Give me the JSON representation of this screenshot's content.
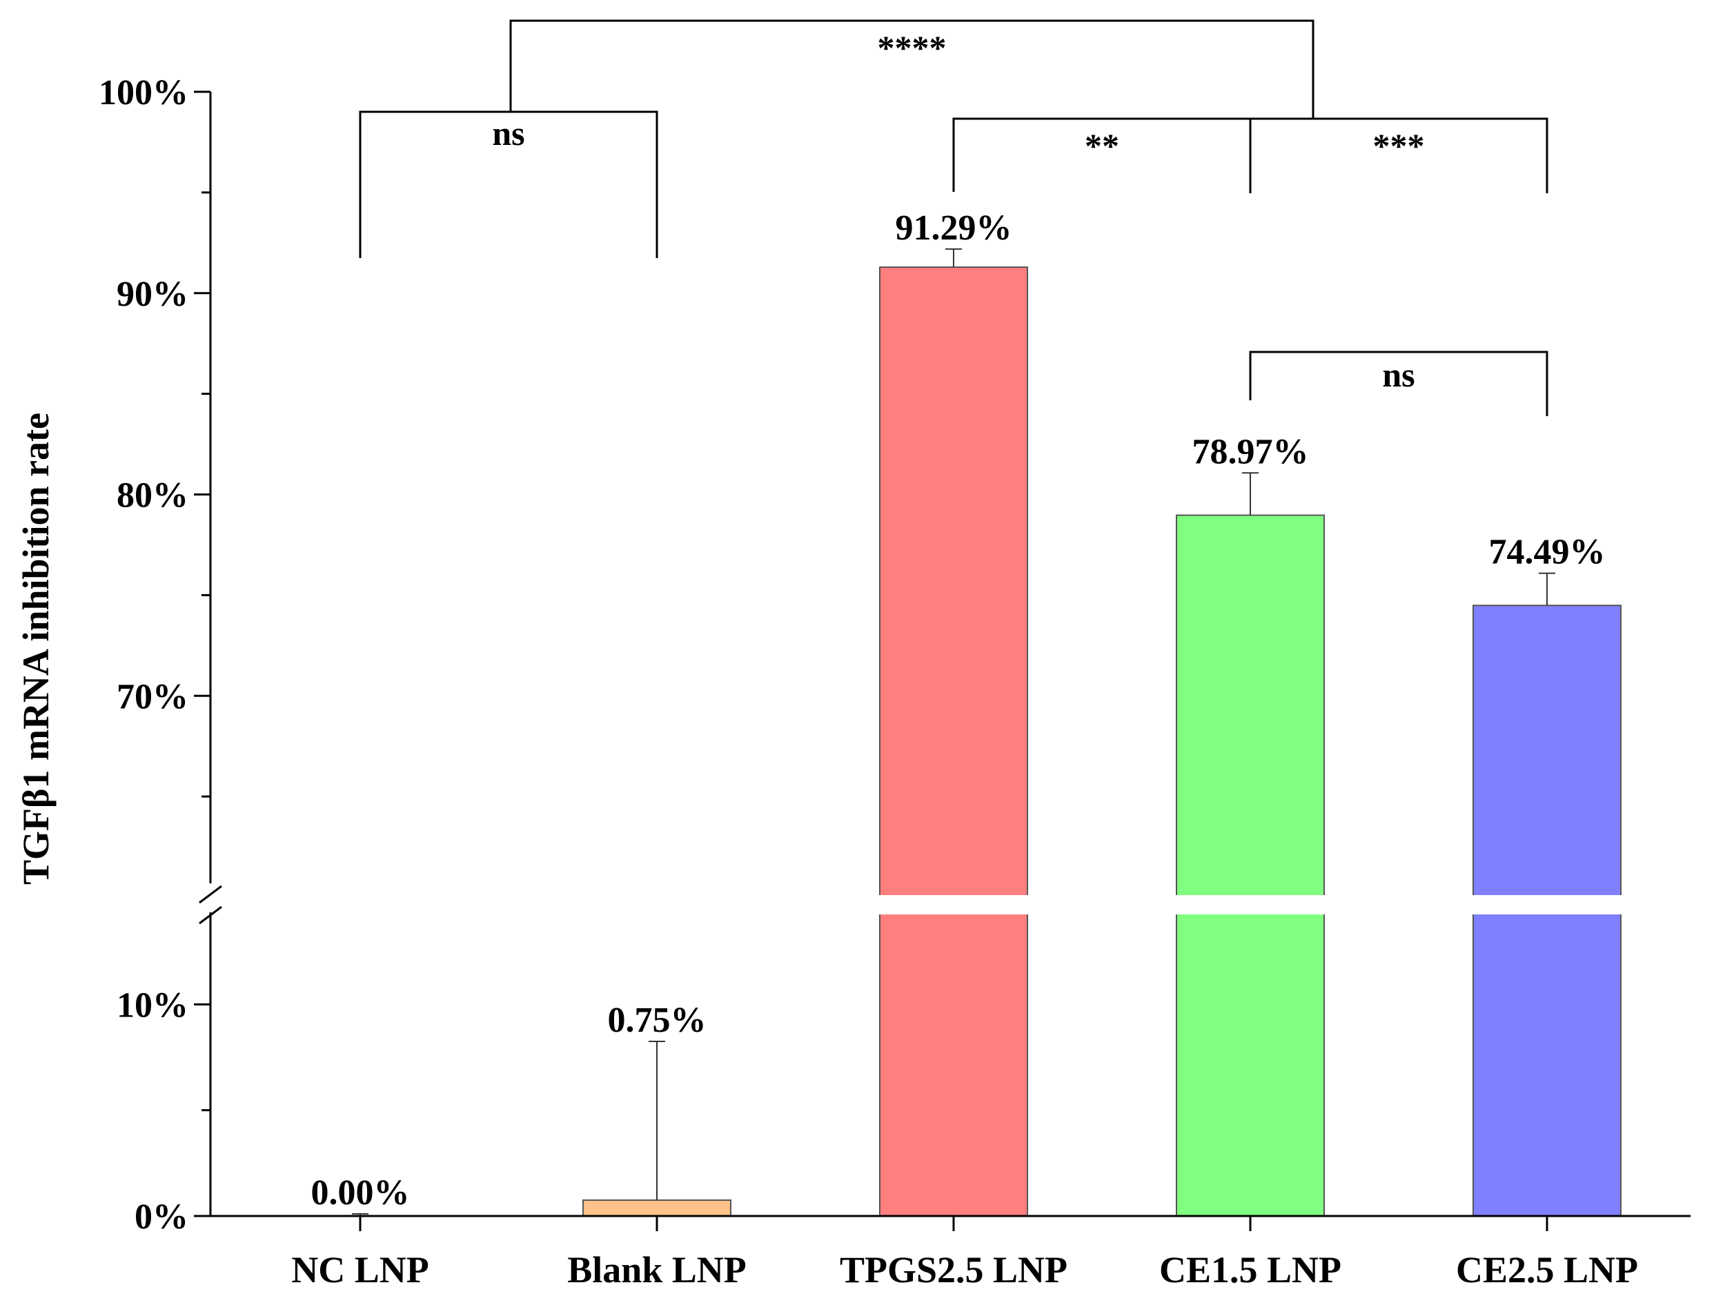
{
  "chart_data": {
    "type": "bar",
    "title": "",
    "xlabel": "",
    "ylabel": "TGFβ1 mRNA inhibition rate",
    "y_axis_break": {
      "lower_range": [
        0,
        15
      ],
      "upper_range": [
        60,
        100
      ]
    },
    "yticks_lower": [
      {
        "value": 0,
        "label": "0%"
      },
      {
        "value": 10,
        "label": "10%"
      }
    ],
    "yticks_upper": [
      {
        "value": 70,
        "label": "70%"
      },
      {
        "value": 80,
        "label": "80%"
      },
      {
        "value": 90,
        "label": "90%"
      },
      {
        "value": 100,
        "label": "100%"
      }
    ],
    "minor_ticks_lower": [
      5
    ],
    "minor_ticks_upper": [
      65,
      75,
      85,
      95
    ],
    "categories": [
      "NC LNP",
      "Blank LNP",
      "TPGS2.5 LNP",
      "CE1.5 LNP",
      "CE2.5 LNP"
    ],
    "values": [
      0.0,
      0.75,
      91.29,
      78.97,
      74.49
    ],
    "errors": [
      0.1,
      7.5,
      0.9,
      2.1,
      1.6
    ],
    "value_labels": [
      "0.00%",
      "0.75%",
      "91.29%",
      "78.97%",
      "74.49%"
    ],
    "colors": [
      "#c8c8c8",
      "#ffc38a",
      "#ff7f7f",
      "#80ff80",
      "#8080ff"
    ],
    "significance": [
      {
        "from": 0,
        "to": 1,
        "label": "ns"
      },
      {
        "from": 2,
        "to": 3,
        "label": "**"
      },
      {
        "from": 3,
        "to": 4,
        "label": "***"
      },
      {
        "from": 3,
        "to": 4,
        "label": "ns"
      },
      {
        "from": 0,
        "to": 3,
        "label": "****"
      }
    ]
  }
}
